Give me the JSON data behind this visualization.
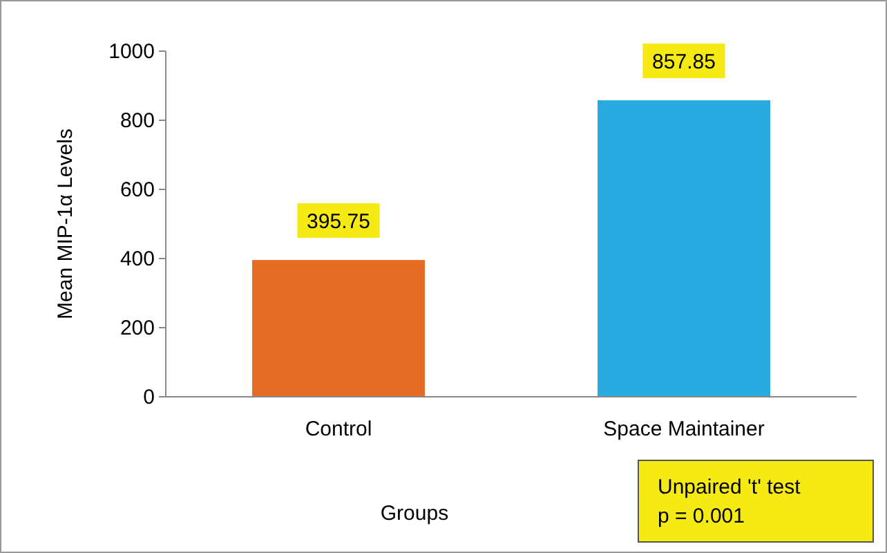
{
  "chart_data": {
    "type": "bar",
    "xlabel": "Groups",
    "ylabel": "Mean MIP-1α Levels",
    "categories": [
      "Control",
      "Space Maintainer"
    ],
    "series": [
      {
        "colors": [
          "#e46c25",
          "#29abe2"
        ],
        "values": [
          395.75,
          857.85
        ]
      }
    ],
    "ylim": [
      0,
      1000
    ],
    "yticks": [
      0,
      200,
      400,
      600,
      800,
      1000
    ],
    "data_labels": true,
    "annotations": [
      "Unpaired 't' test\np = 0.001"
    ]
  }
}
